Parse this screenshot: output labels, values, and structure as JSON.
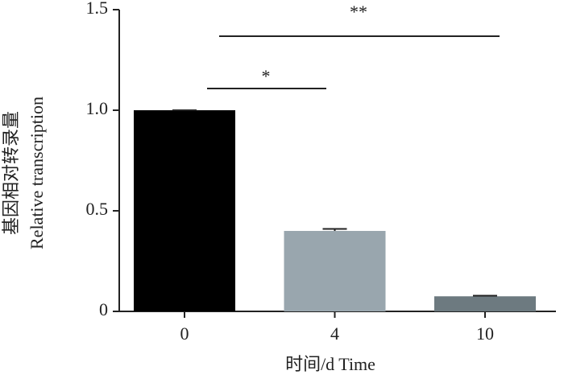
{
  "chart_data": {
    "type": "bar",
    "x_label": "时间/d Time",
    "y_label": [
      "基因相对转录量",
      "Relative transcription"
    ],
    "categories": [
      "0",
      "4",
      "10"
    ],
    "values": [
      1.0,
      0.4,
      0.075
    ],
    "errors": [
      0,
      0.01,
      0.003
    ],
    "colors": [
      "#000000",
      "#99a6ae",
      "#6d7a80"
    ],
    "ylim": [
      0,
      1.5
    ],
    "yticks": [
      0,
      0.5,
      {
        "value": 1,
        "label": "1.0"
      },
      1.5
    ],
    "annotations": [
      "*",
      "**"
    ]
  }
}
